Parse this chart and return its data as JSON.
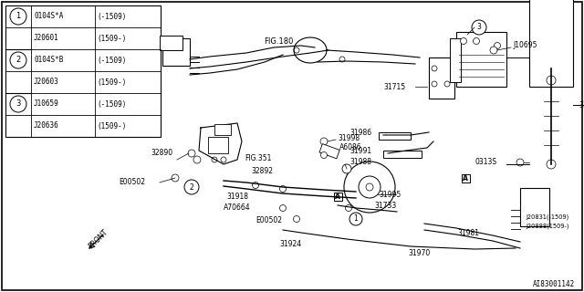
{
  "bg": "#ffffff",
  "lc": "#000000",
  "fig_width": 6.4,
  "fig_height": 3.2,
  "dpi": 100,
  "table_rows": [
    [
      1,
      "0104S*A",
      "(-1509)"
    ],
    [
      1,
      "J20601",
      "(1509-)"
    ],
    [
      2,
      "0104S*B",
      "(-1509)"
    ],
    [
      2,
      "J20603",
      "(1509-)"
    ],
    [
      3,
      "J10659",
      "(-1509)"
    ],
    [
      3,
      "J20636",
      "(1509-)"
    ]
  ]
}
